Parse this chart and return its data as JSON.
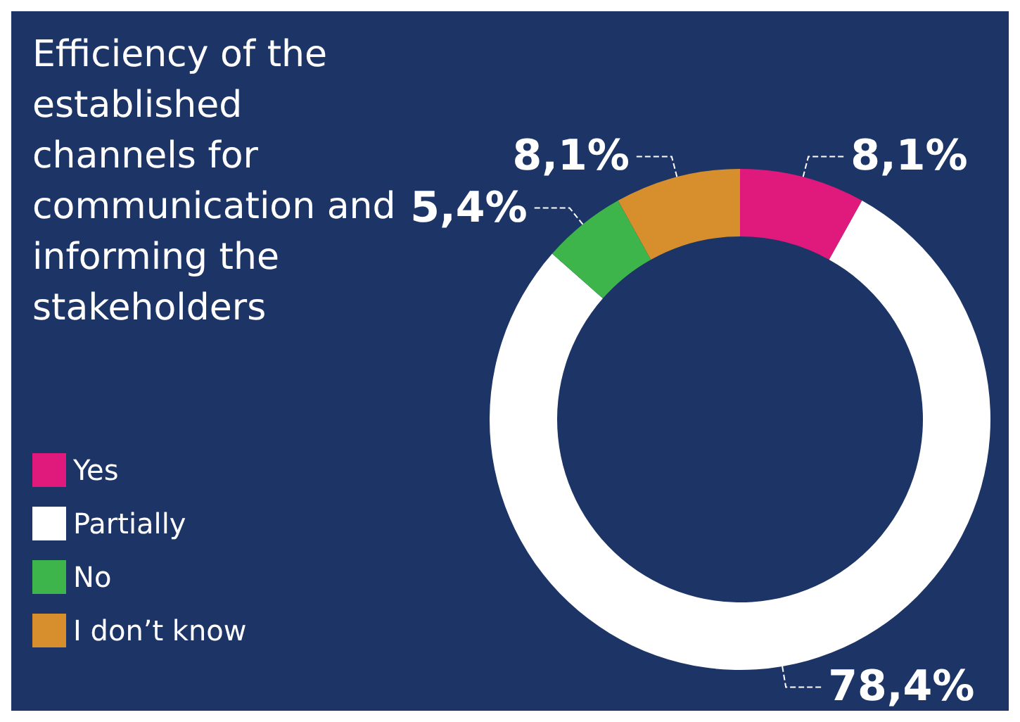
{
  "chart_data": {
    "type": "donut",
    "title": "Efficiency of the established channels for communication and informing the stakeholders",
    "categories": [
      "Yes",
      "Partially",
      "No",
      "I don’t know"
    ],
    "values": [
      8.1,
      78.4,
      5.4,
      8.1
    ],
    "colors": [
      "#e0197d",
      "#ffffff",
      "#3db54a",
      "#d68f2c"
    ],
    "value_labels": [
      "8,1%",
      "78,4%",
      "5,4%",
      "8,1%"
    ],
    "legend": "bottom left"
  }
}
